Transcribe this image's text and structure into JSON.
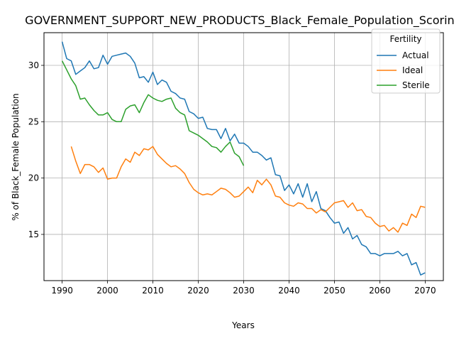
{
  "chart_data": {
    "type": "line",
    "title": "GOVERNMENT_SUPPORT_NEW_PRODUCTS_Black_Female_Population_Scoring",
    "xlabel": "Years",
    "ylabel": "% of Black_Female Population",
    "xlim": [
      1986,
      2074
    ],
    "ylim": [
      10.9,
      32.9
    ],
    "xticks": [
      1990,
      2000,
      2010,
      2020,
      2030,
      2040,
      2050,
      2060,
      2070
    ],
    "yticks": [
      15,
      20,
      25,
      30
    ],
    "grid": true,
    "legend": {
      "title": "Fertility",
      "position": "top-right"
    },
    "series": [
      {
        "name": "Actual",
        "color": "#1f77b4",
        "x": [
          1990,
          1991,
          1992,
          1993,
          1994,
          1995,
          1996,
          1997,
          1998,
          1999,
          2000,
          2001,
          2002,
          2003,
          2004,
          2005,
          2006,
          2007,
          2008,
          2009,
          2010,
          2011,
          2012,
          2013,
          2014,
          2015,
          2016,
          2017,
          2018,
          2019,
          2020,
          2021,
          2022,
          2023,
          2024,
          2025,
          2026,
          2027,
          2028,
          2029,
          2030,
          2031,
          2032,
          2033,
          2034,
          2035,
          2036,
          2037,
          2038,
          2039,
          2040,
          2041,
          2042,
          2043,
          2044,
          2045,
          2046,
          2047,
          2048,
          2049,
          2050,
          2051,
          2052,
          2053,
          2054,
          2055,
          2056,
          2057,
          2058,
          2059,
          2060,
          2061,
          2062,
          2063,
          2064,
          2065,
          2066,
          2067,
          2068,
          2069,
          2070
        ],
        "values": [
          32.1,
          30.6,
          30.4,
          29.2,
          29.5,
          29.8,
          30.4,
          29.7,
          29.8,
          30.9,
          30.1,
          30.8,
          30.9,
          31.0,
          31.1,
          30.8,
          30.2,
          28.9,
          29.0,
          28.5,
          29.4,
          28.3,
          28.7,
          28.5,
          27.7,
          27.5,
          27.1,
          27.0,
          25.9,
          25.7,
          25.3,
          25.4,
          24.4,
          24.3,
          24.3,
          23.5,
          24.4,
          23.3,
          23.9,
          23.1,
          23.1,
          22.8,
          22.3,
          22.3,
          22.0,
          21.6,
          21.8,
          20.3,
          20.2,
          18.9,
          19.4,
          18.6,
          19.5,
          18.3,
          19.5,
          17.9,
          18.8,
          17.3,
          17.1,
          16.5,
          16.0,
          16.1,
          15.1,
          15.6,
          14.6,
          14.9,
          14.1,
          13.9,
          13.3,
          13.3,
          13.1,
          13.3,
          13.3,
          13.3,
          13.5,
          13.1,
          13.3,
          12.3,
          12.5,
          11.4,
          11.6
        ]
      },
      {
        "name": "Ideal",
        "color": "#ff7f0e",
        "x": [
          1992,
          1993,
          1994,
          1995,
          1996,
          1997,
          1998,
          1999,
          2000,
          2001,
          2002,
          2003,
          2004,
          2005,
          2006,
          2007,
          2008,
          2009,
          2010,
          2011,
          2012,
          2013,
          2014,
          2015,
          2016,
          2017,
          2018,
          2019,
          2020,
          2021,
          2022,
          2023,
          2024,
          2025,
          2026,
          2027,
          2028,
          2029,
          2030,
          2031,
          2032,
          2033,
          2034,
          2035,
          2036,
          2037,
          2038,
          2039,
          2040,
          2041,
          2042,
          2043,
          2044,
          2045,
          2046,
          2047,
          2048,
          2049,
          2050,
          2051,
          2052,
          2053,
          2054,
          2055,
          2056,
          2057,
          2058,
          2059,
          2060,
          2061,
          2062,
          2063,
          2064,
          2065,
          2066,
          2067,
          2068,
          2069,
          2070
        ],
        "values": [
          22.8,
          21.5,
          20.4,
          21.2,
          21.2,
          21.0,
          20.5,
          20.9,
          19.9,
          20.0,
          20.0,
          21.0,
          21.7,
          21.4,
          22.3,
          22.0,
          22.6,
          22.5,
          22.8,
          22.1,
          21.7,
          21.3,
          21.0,
          21.1,
          20.8,
          20.4,
          19.6,
          19.0,
          18.7,
          18.5,
          18.6,
          18.5,
          18.8,
          19.1,
          19.0,
          18.7,
          18.3,
          18.4,
          18.8,
          19.2,
          18.7,
          19.8,
          19.4,
          19.9,
          19.4,
          18.4,
          18.3,
          17.8,
          17.6,
          17.5,
          17.8,
          17.7,
          17.3,
          17.3,
          16.9,
          17.2,
          17.0,
          17.4,
          17.8,
          17.9,
          18.0,
          17.4,
          17.8,
          17.1,
          17.2,
          16.6,
          16.5,
          16.0,
          15.7,
          15.8,
          15.3,
          15.6,
          15.2,
          16.0,
          15.8,
          16.8,
          16.5,
          17.5,
          17.4
        ]
      },
      {
        "name": "Sterile",
        "color": "#2ca02c",
        "x": [
          1990,
          1991,
          1992,
          1993,
          1994,
          1995,
          1996,
          1997,
          1998,
          1999,
          2000,
          2001,
          2002,
          2003,
          2004,
          2005,
          2006,
          2007,
          2008,
          2009,
          2010,
          2011,
          2012,
          2013,
          2014,
          2015,
          2016,
          2017,
          2018,
          2019,
          2020,
          2021,
          2022,
          2023,
          2024,
          2025,
          2026,
          2027,
          2028,
          2029,
          2030
        ],
        "values": [
          30.4,
          29.6,
          28.8,
          28.2,
          27.0,
          27.1,
          26.5,
          26.0,
          25.6,
          25.6,
          25.8,
          25.2,
          25.0,
          25.0,
          26.1,
          26.4,
          26.5,
          25.8,
          26.7,
          27.4,
          27.1,
          26.9,
          26.8,
          27.0,
          27.1,
          26.2,
          25.8,
          25.6,
          24.2,
          24.0,
          23.8,
          23.5,
          23.2,
          22.8,
          22.7,
          22.3,
          22.8,
          23.2,
          22.2,
          21.9,
          21.1
        ]
      }
    ]
  }
}
